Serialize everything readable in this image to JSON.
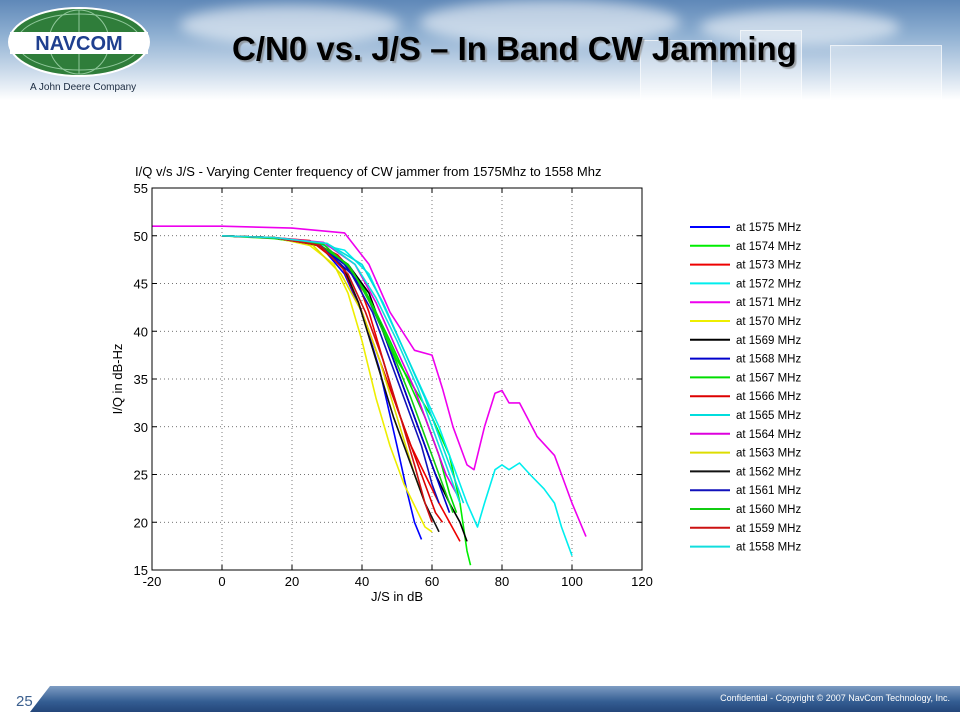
{
  "slide": {
    "title": "C/N0 vs. J/S – In Band CW Jamming",
    "logo_text": "NAVCOM",
    "company_tagline": "A John Deere Company",
    "footer": "Confidential - Copyright © 2007 NavCom Technology, Inc.",
    "page_number": "25",
    "colors": {
      "logo_green": "#2f7d3a",
      "logo_blue": "#1f3f8f",
      "footer_blue": "#345d92"
    }
  },
  "chart_data": {
    "type": "line",
    "title": "I/Q v/s J/S - Varying Center frequency of CW jammer from 1575Mhz to 1558 Mhz",
    "xlabel": "J/S in dB",
    "ylabel": "I/Q in dB-Hz",
    "xlim": [
      -20,
      120
    ],
    "ylim": [
      15,
      55
    ],
    "xticks": [
      -20,
      0,
      20,
      40,
      60,
      80,
      100,
      120
    ],
    "yticks": [
      15,
      20,
      25,
      30,
      35,
      40,
      45,
      50,
      55
    ],
    "grid": true,
    "legend_position": "right",
    "series": [
      {
        "name": "at 1575 MHz",
        "color": "#0000ff",
        "x": [
          0,
          15,
          28,
          35,
          40,
          45,
          50,
          53,
          55,
          57
        ],
        "y": [
          50,
          49.8,
          49,
          46,
          42,
          36,
          28,
          23,
          20,
          18.2
        ]
      },
      {
        "name": "at 1574 MHz",
        "color": "#00ee00",
        "x": [
          0,
          15,
          28,
          35,
          40,
          45,
          50,
          55,
          60,
          65,
          68,
          70,
          71
        ],
        "y": [
          50,
          49.7,
          49,
          47,
          45,
          41,
          37,
          34,
          31,
          27,
          22,
          17,
          15.5
        ]
      },
      {
        "name": "at 1573 MHz",
        "color": "#ee0000",
        "x": [
          0,
          15,
          25,
          33,
          38,
          42,
          46,
          50,
          54,
          58,
          62,
          65,
          68
        ],
        "y": [
          50,
          49.8,
          49.5,
          48,
          46,
          42,
          37,
          32,
          28,
          25,
          22,
          20,
          18
        ]
      },
      {
        "name": "at 1572 MHz",
        "color": "#00eeee",
        "x": [
          0,
          15,
          25,
          35,
          42,
          47,
          52,
          57,
          62,
          66,
          70,
          73,
          75,
          78,
          80,
          82,
          85,
          88,
          92,
          95,
          97,
          100
        ],
        "y": [
          50,
          49.8,
          49.3,
          48.5,
          46,
          42,
          38,
          34,
          30,
          26,
          22,
          19.5,
          22,
          25.5,
          26,
          25.5,
          26.2,
          25,
          23.5,
          22,
          19.5,
          16.5
        ]
      },
      {
        "name": "at 1571 MHz",
        "color": "#ee00ee",
        "x": [
          -20,
          0,
          20,
          35,
          42,
          48,
          55,
          60,
          63,
          66,
          70,
          72,
          75,
          78,
          80,
          82,
          85,
          90,
          95,
          100,
          104
        ],
        "y": [
          51,
          51,
          50.8,
          50.3,
          47,
          42,
          38,
          37.5,
          34,
          30,
          26,
          25.5,
          30,
          33.5,
          33.8,
          32.5,
          32.5,
          29,
          27,
          22,
          18.5
        ]
      },
      {
        "name": "at 1570 MHz",
        "color": "#eeee00",
        "x": [
          0,
          15,
          25,
          32,
          36,
          40,
          44,
          48,
          52,
          56,
          58,
          60
        ],
        "y": [
          50,
          49.8,
          49,
          47,
          44,
          39,
          33,
          28,
          24,
          21,
          19.5,
          19
        ]
      },
      {
        "name": "at 1569 MHz",
        "color": "#000000",
        "x": [
          0,
          15,
          28,
          36,
          42,
          47,
          52,
          57,
          61,
          65,
          68,
          70
        ],
        "y": [
          50,
          49.8,
          49,
          47,
          44,
          39,
          34,
          29,
          25,
          22,
          20,
          18
        ]
      },
      {
        "name": "at 1568 MHz",
        "color": "#0000cc",
        "x": [
          0,
          15,
          27,
          35,
          41,
          46,
          51,
          56,
          60,
          63,
          65
        ],
        "y": [
          50,
          49.8,
          49.2,
          47,
          44,
          40,
          35,
          30,
          26,
          23,
          21
        ]
      },
      {
        "name": "at 1567 MHz",
        "color": "#00dd00",
        "x": [
          0,
          15,
          28,
          36,
          42,
          48,
          53,
          58,
          62,
          65,
          67
        ],
        "y": [
          50,
          49.8,
          49,
          47,
          43.5,
          39,
          35,
          31,
          27,
          23,
          21
        ]
      },
      {
        "name": "at 1566 MHz",
        "color": "#dd0000",
        "x": [
          0,
          15,
          27,
          34,
          39,
          44,
          49,
          54,
          58,
          61,
          63
        ],
        "y": [
          50,
          49.8,
          49,
          47,
          43,
          38,
          33,
          28,
          24,
          21,
          20
        ]
      },
      {
        "name": "at 1565 MHz",
        "color": "#00dddd",
        "x": [
          0,
          15,
          30,
          40,
          46,
          52,
          58,
          63,
          67,
          69
        ],
        "y": [
          50,
          49.8,
          49.2,
          47,
          43,
          38,
          33,
          28,
          24,
          22
        ]
      },
      {
        "name": "at 1564 MHz",
        "color": "#dd00dd",
        "x": [
          0,
          15,
          29,
          38,
          44,
          50,
          55,
          60,
          64,
          67
        ],
        "y": [
          50,
          49.8,
          49.3,
          47,
          43,
          38,
          34,
          29,
          25,
          23
        ]
      },
      {
        "name": "at 1563 MHz",
        "color": "#dddd00",
        "x": [
          0,
          15,
          26,
          34,
          40,
          45,
          50,
          55,
          58
        ],
        "y": [
          50,
          49.8,
          49,
          46,
          42,
          37,
          31,
          25,
          22
        ]
      },
      {
        "name": "at 1562 MHz",
        "color": "#111111",
        "x": [
          0,
          15,
          28,
          35,
          39,
          44,
          49,
          54,
          58,
          62
        ],
        "y": [
          50,
          49.8,
          49,
          46.5,
          43,
          37,
          31,
          26,
          22,
          19
        ]
      },
      {
        "name": "at 1561 MHz",
        "color": "#1111bb",
        "x": [
          0,
          15,
          28,
          37,
          43,
          48,
          53,
          57,
          60,
          62
        ],
        "y": [
          50,
          49.8,
          49,
          46,
          42,
          37,
          32,
          28,
          24,
          22
        ]
      },
      {
        "name": "at 1560 MHz",
        "color": "#11cc11",
        "x": [
          0,
          15,
          29,
          37,
          43,
          49,
          54,
          59,
          63,
          66
        ],
        "y": [
          50,
          49.8,
          49.1,
          46.5,
          42.5,
          37.5,
          33,
          28,
          24,
          21
        ]
      },
      {
        "name": "at 1559 MHz",
        "color": "#cc1111",
        "x": [
          0,
          15,
          28,
          36,
          41,
          46,
          51,
          55,
          58,
          60
        ],
        "y": [
          50,
          49.8,
          49,
          46,
          42,
          37,
          31,
          26,
          22,
          20
        ]
      },
      {
        "name": "at 1558 MHz",
        "color": "#11dddd",
        "x": [
          0,
          15,
          30,
          38,
          44,
          50,
          56,
          61,
          65,
          68
        ],
        "y": [
          50,
          49.8,
          49.2,
          47,
          43.5,
          39,
          34,
          29,
          25,
          22
        ]
      }
    ]
  }
}
